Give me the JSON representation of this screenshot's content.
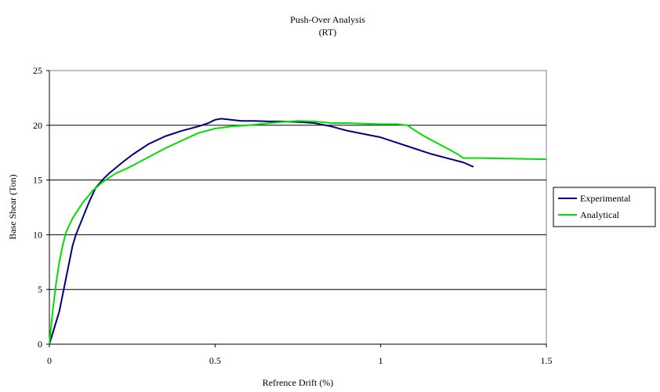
{
  "chart_data": {
    "type": "line",
    "title": "Push-Over Analysis",
    "subtitle": "(RT)",
    "xlabel": "Refrence Drift  (%)",
    "ylabel": "Base Shear  (Ton)",
    "xlim": [
      0,
      1.5
    ],
    "ylim": [
      0,
      25
    ],
    "x_ticks": [
      "0",
      "0.5",
      "1",
      "1.5"
    ],
    "y_ticks": [
      "0",
      "5",
      "10",
      "15",
      "20",
      "25"
    ],
    "grid": "horizontal",
    "legend_position": "right",
    "series": [
      {
        "name": "Experimental",
        "color": "#000080",
        "points": [
          [
            0,
            0
          ],
          [
            0.01,
            1
          ],
          [
            0.02,
            2
          ],
          [
            0.03,
            3
          ],
          [
            0.04,
            4.5
          ],
          [
            0.05,
            6
          ],
          [
            0.06,
            7.5
          ],
          [
            0.07,
            9
          ],
          [
            0.08,
            10
          ],
          [
            0.1,
            11.5
          ],
          [
            0.12,
            13
          ],
          [
            0.14,
            14.3
          ],
          [
            0.16,
            15
          ],
          [
            0.18,
            15.6
          ],
          [
            0.2,
            16.1
          ],
          [
            0.22,
            16.6
          ],
          [
            0.25,
            17.3
          ],
          [
            0.28,
            17.9
          ],
          [
            0.3,
            18.3
          ],
          [
            0.35,
            19
          ],
          [
            0.4,
            19.5
          ],
          [
            0.45,
            19.9
          ],
          [
            0.48,
            20.2
          ],
          [
            0.5,
            20.5
          ],
          [
            0.52,
            20.6
          ],
          [
            0.55,
            20.5
          ],
          [
            0.58,
            20.4
          ],
          [
            0.62,
            20.4
          ],
          [
            0.66,
            20.35
          ],
          [
            0.7,
            20.35
          ],
          [
            0.75,
            20.3
          ],
          [
            0.8,
            20.2
          ],
          [
            0.85,
            19.9
          ],
          [
            0.9,
            19.5
          ],
          [
            0.95,
            19.2
          ],
          [
            1.0,
            18.9
          ],
          [
            1.05,
            18.4
          ],
          [
            1.1,
            17.9
          ],
          [
            1.15,
            17.4
          ],
          [
            1.2,
            17
          ],
          [
            1.25,
            16.6
          ],
          [
            1.28,
            16.2
          ]
        ]
      },
      {
        "name": "Analytical",
        "color": "#00e000",
        "points": [
          [
            0,
            0
          ],
          [
            0.01,
            3
          ],
          [
            0.02,
            5.5
          ],
          [
            0.03,
            7.5
          ],
          [
            0.04,
            9
          ],
          [
            0.05,
            10.2
          ],
          [
            0.07,
            11.5
          ],
          [
            0.1,
            12.9
          ],
          [
            0.13,
            14
          ],
          [
            0.16,
            14.8
          ],
          [
            0.2,
            15.6
          ],
          [
            0.23,
            16
          ],
          [
            0.25,
            16.3
          ],
          [
            0.3,
            17.1
          ],
          [
            0.35,
            17.9
          ],
          [
            0.4,
            18.6
          ],
          [
            0.45,
            19.3
          ],
          [
            0.5,
            19.7
          ],
          [
            0.55,
            19.9
          ],
          [
            0.6,
            20
          ],
          [
            0.65,
            20.15
          ],
          [
            0.7,
            20.3
          ],
          [
            0.75,
            20.4
          ],
          [
            0.8,
            20.35
          ],
          [
            0.85,
            20.2
          ],
          [
            0.9,
            20.2
          ],
          [
            0.95,
            20.15
          ],
          [
            1.0,
            20.1
          ],
          [
            1.05,
            20.1
          ],
          [
            1.08,
            20
          ],
          [
            1.12,
            19.2
          ],
          [
            1.15,
            18.7
          ],
          [
            1.2,
            17.9
          ],
          [
            1.23,
            17.4
          ],
          [
            1.25,
            17
          ],
          [
            1.3,
            17
          ],
          [
            1.4,
            16.95
          ],
          [
            1.5,
            16.9
          ]
        ]
      }
    ]
  }
}
